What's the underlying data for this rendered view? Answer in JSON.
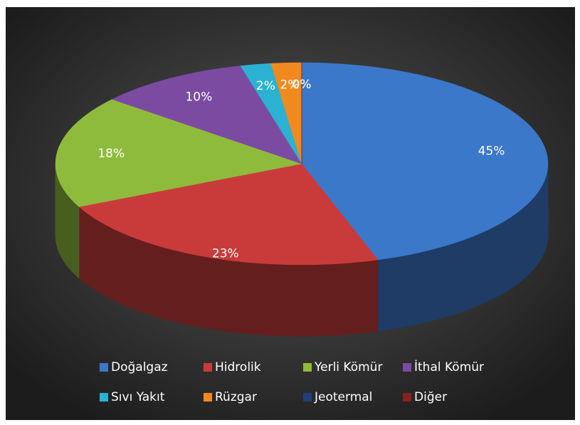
{
  "chart_data": {
    "type": "pie3d",
    "categories": [
      "Doğalgaz",
      "Hidrolik",
      "Yerli Kömür",
      "İthal Kömür",
      "Sıvı Yakıt",
      "Rüzgar",
      "Jeotermal",
      "Diğer"
    ],
    "values": [
      45,
      23,
      18,
      10,
      2,
      2,
      0,
      0
    ],
    "value_labels": [
      "45%",
      "23%",
      "18%",
      "10%",
      "2%",
      "2%",
      "0%",
      "0%"
    ],
    "colors": [
      "#3b78c9",
      "#c93b3b",
      "#8fbb3c",
      "#7b4ba2",
      "#2bb2d2",
      "#f08a1f",
      "#1f3f7a",
      "#8c1f1f"
    ],
    "legend": "bottom"
  }
}
